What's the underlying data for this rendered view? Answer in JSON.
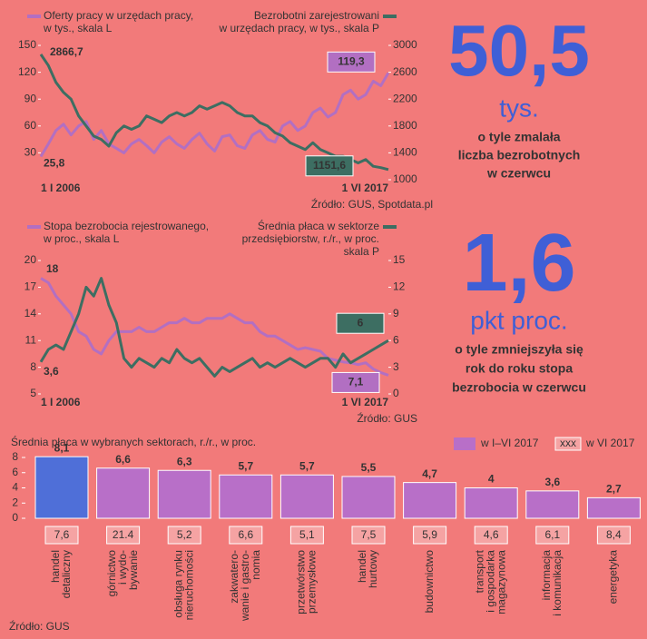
{
  "chart_data": [
    {
      "type": "line",
      "categories": [
        "1 I 2006",
        null,
        null,
        null,
        null,
        null,
        null,
        null,
        null,
        null,
        null,
        null,
        null,
        null,
        null,
        null,
        null,
        null,
        null,
        null,
        null,
        null,
        null,
        null,
        null,
        null,
        null,
        null,
        null,
        null,
        null,
        null,
        null,
        null,
        null,
        null,
        null,
        null,
        null,
        null,
        null,
        null,
        null,
        null,
        null,
        null,
        "1 VI 2017"
      ],
      "ylim": [
        0,
        150
      ],
      "yticks": [
        30,
        60,
        90,
        120,
        150
      ],
      "y2lim": [
        1000,
        3000
      ],
      "y2ticks": [
        1000,
        1400,
        1800,
        2200,
        2600,
        3000
      ],
      "source": "Źródło: GUS, Spotdata.pl",
      "series": [
        {
          "name": [
            "Oferty pracy w urzędach pracy,",
            "w tys., skala L"
          ],
          "color": "#b26fc2",
          "values": [
            25.8,
            40,
            55,
            62,
            50,
            60,
            65,
            45,
            55,
            40,
            35,
            30,
            40,
            45,
            38,
            30,
            42,
            48,
            40,
            35,
            45,
            52,
            40,
            32,
            48,
            50,
            38,
            35,
            50,
            55,
            45,
            42,
            60,
            65,
            55,
            60,
            75,
            80,
            70,
            75,
            95,
            100,
            90,
            95,
            110,
            105,
            119.3
          ],
          "value_labels": [
            "25,8",
            null,
            null,
            null,
            null,
            null,
            null,
            null,
            null,
            null,
            null,
            null,
            null,
            null,
            null,
            null,
            null,
            null,
            null,
            null,
            null,
            null,
            null,
            null,
            null,
            null,
            null,
            null,
            null,
            null,
            null,
            null,
            null,
            null,
            null,
            null,
            null,
            null,
            null,
            null,
            null,
            null,
            null,
            null,
            null,
            null,
            "119,3"
          ]
        },
        {
          "name": [
            "Bezrobotni zarejestrowani",
            "w urzędach pracy, w tys., skala P"
          ],
          "color": "#3d6e62",
          "axis": "y2",
          "values": [
            2866.7,
            2700,
            2450,
            2300,
            2200,
            1950,
            1800,
            1650,
            1600,
            1500,
            1700,
            1800,
            1750,
            1800,
            1950,
            1900,
            1850,
            1950,
            2000,
            1950,
            2000,
            2100,
            2050,
            2100,
            2150,
            2100,
            2000,
            1950,
            1950,
            1850,
            1800,
            1700,
            1650,
            1550,
            1500,
            1450,
            1550,
            1450,
            1400,
            1350,
            1350,
            1300,
            1250,
            1300,
            1200,
            1180,
            1151.6
          ],
          "value_labels": [
            "2866,7",
            null,
            null,
            null,
            null,
            null,
            null,
            null,
            null,
            null,
            null,
            null,
            null,
            null,
            null,
            null,
            null,
            null,
            null,
            null,
            null,
            null,
            null,
            null,
            null,
            null,
            null,
            null,
            null,
            null,
            null,
            null,
            null,
            null,
            null,
            null,
            null,
            null,
            null,
            null,
            null,
            null,
            null,
            null,
            null,
            null,
            "1151,6"
          ]
        }
      ]
    },
    {
      "type": "line",
      "categories": [
        "1 I 2006",
        null,
        null,
        null,
        null,
        null,
        null,
        null,
        null,
        null,
        null,
        null,
        null,
        null,
        null,
        null,
        null,
        null,
        null,
        null,
        null,
        null,
        null,
        null,
        null,
        null,
        null,
        null,
        null,
        null,
        null,
        null,
        null,
        null,
        null,
        null,
        null,
        null,
        null,
        null,
        null,
        null,
        null,
        null,
        null,
        null,
        "1 VI 2017"
      ],
      "ylim": [
        5,
        20
      ],
      "yticks": [
        5,
        8,
        11,
        14,
        17,
        20
      ],
      "y2lim": [
        0,
        15
      ],
      "y2ticks": [
        0,
        3,
        6,
        9,
        12,
        15
      ],
      "source": "Źródło: GUS",
      "series": [
        {
          "name": [
            "Stopa bezrobocia rejestrowanego,",
            "w proc., skala L"
          ],
          "color": "#b26fc2",
          "values": [
            18,
            17.5,
            16,
            15,
            14,
            12,
            11.5,
            10,
            9.5,
            11,
            12,
            12,
            12,
            12.5,
            12,
            12,
            12.5,
            13,
            13,
            13.5,
            13,
            13,
            13.5,
            13.5,
            13.5,
            14,
            13.5,
            13,
            13,
            12,
            11.5,
            11.5,
            11,
            10.5,
            10,
            10.2,
            10,
            9.8,
            9,
            8.8,
            8.6,
            8.5,
            8.3,
            8.5,
            7.8,
            7.4,
            7.1
          ],
          "value_labels": [
            "18",
            null,
            null,
            null,
            null,
            null,
            null,
            null,
            null,
            null,
            null,
            null,
            null,
            null,
            null,
            null,
            null,
            null,
            null,
            null,
            null,
            null,
            null,
            null,
            null,
            null,
            null,
            null,
            null,
            null,
            null,
            null,
            null,
            null,
            null,
            null,
            null,
            null,
            null,
            null,
            null,
            null,
            null,
            null,
            null,
            null,
            "7,1"
          ]
        },
        {
          "name": [
            "Średnia płaca w sektorze",
            "przedsiębiorstw, r./r., w proc.",
            "skala P"
          ],
          "color": "#3d6e62",
          "axis": "y2",
          "values": [
            3.6,
            5,
            5.5,
            5,
            7,
            9,
            12,
            11,
            13,
            10,
            8,
            4,
            3,
            4,
            3.5,
            3,
            4,
            3.5,
            5,
            4,
            3.5,
            4,
            3,
            2,
            3,
            2.5,
            3,
            3.5,
            4,
            3,
            3.5,
            3,
            3.5,
            4,
            3.5,
            3,
            3.5,
            4,
            4,
            3,
            4.5,
            3.5,
            4,
            4.5,
            5,
            5.5,
            6
          ],
          "value_labels": [
            "3,6",
            null,
            null,
            null,
            null,
            null,
            null,
            null,
            null,
            null,
            null,
            null,
            null,
            null,
            null,
            null,
            null,
            null,
            null,
            null,
            null,
            null,
            null,
            null,
            null,
            null,
            null,
            null,
            null,
            null,
            null,
            null,
            null,
            null,
            null,
            null,
            null,
            null,
            null,
            null,
            null,
            null,
            null,
            null,
            null,
            null,
            "6"
          ]
        }
      ]
    },
    {
      "type": "bar",
      "title": "Średnia płaca w wybranych sektorach, r./r., w proc.",
      "categories": [
        [
          "handel",
          "detaliczny"
        ],
        [
          "górnictwo",
          "i wydo-",
          "bywanie"
        ],
        [
          "obsługa rynku",
          "nieruchomości"
        ],
        [
          "zakwatero-",
          "wanie i gastro-",
          "nomia"
        ],
        [
          "przetwórstwo",
          "przemysłowe"
        ],
        [
          "handel",
          "hurtowy"
        ],
        [
          "budownictwo"
        ],
        [
          "transport",
          "i gospodarka",
          "magazynowa"
        ],
        [
          "informacja",
          "i komunikacja"
        ],
        [
          "energetyka"
        ]
      ],
      "ylim": [
        0,
        8
      ],
      "yticks": [
        0,
        2,
        4,
        6,
        8
      ],
      "source": "Źródło: GUS",
      "series": [
        {
          "name": "w I–VI 2017",
          "color": "#b86fc8",
          "colors": [
            "#4f6fd8",
            "#b86fc8",
            "#b86fc8",
            "#b86fc8",
            "#b86fc8",
            "#b86fc8",
            "#b86fc8",
            "#b86fc8",
            "#b86fc8",
            "#b86fc8"
          ],
          "values": [
            8.1,
            6.6,
            6.3,
            5.7,
            5.7,
            5.5,
            4.7,
            4,
            3.6,
            2.7
          ],
          "value_labels": [
            "8,1",
            "6,6",
            "6,3",
            "5,7",
            "5,7",
            "5,5",
            "4,7",
            "4",
            "3,6",
            "2,7"
          ]
        },
        {
          "name": "w VI 2017",
          "legend_symbol": "xxx",
          "color": "#f5a3a3",
          "values": [
            7.6,
            21.4,
            5.2,
            6.6,
            5.1,
            7.5,
            5.9,
            4.6,
            6.1,
            8.4
          ],
          "value_labels": [
            "7,6",
            "21.4",
            "5,2",
            "6,6",
            "5,1",
            "7,5",
            "5,9",
            "4,6",
            "6,1",
            "8,4"
          ]
        }
      ]
    }
  ],
  "highlights": [
    {
      "value": "50,5",
      "unit": "tys.",
      "text": [
        "o tyle zmalała",
        "liczba bezrobotnych",
        "w czerwcu"
      ]
    },
    {
      "value": "1,6",
      "unit": "pkt proc.",
      "text": [
        "o tyle zmniejszyła się",
        "rok do roku stopa",
        "bezrobocia w czerwcu"
      ]
    }
  ]
}
